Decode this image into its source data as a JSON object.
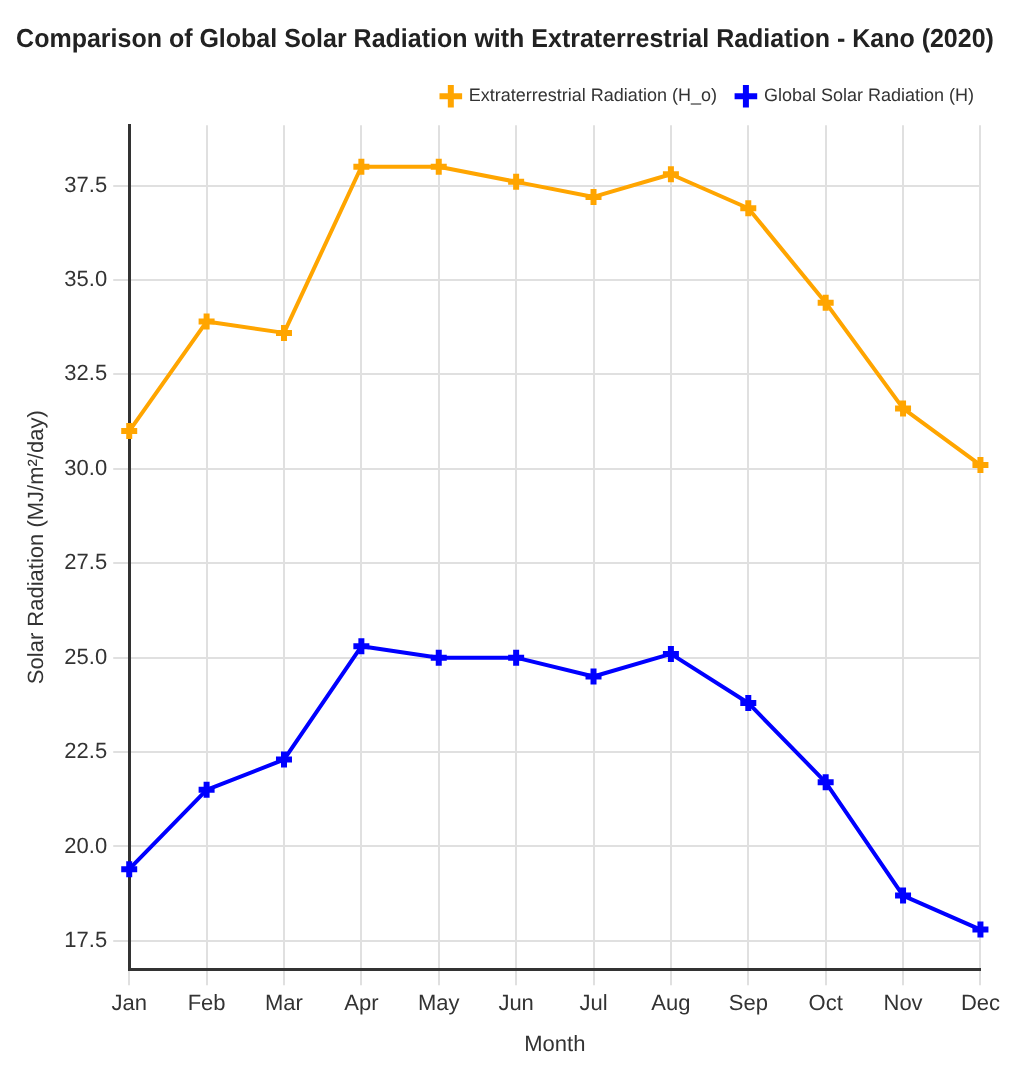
{
  "chart_data": {
    "type": "line",
    "title": "Comparison of Global Solar Radiation with Extraterrestrial Radiation - Kano (2020)",
    "xlabel": "Month",
    "ylabel": "Solar Radiation (MJ/m²/day)",
    "categories": [
      "Jan",
      "Feb",
      "Mar",
      "Apr",
      "May",
      "Jun",
      "Jul",
      "Aug",
      "Sep",
      "Oct",
      "Nov",
      "Dec"
    ],
    "series": [
      {
        "name": "Extraterrestrial Radiation (H_o)",
        "color": "#ffa500",
        "values": [
          31.0,
          33.9,
          33.6,
          38.0,
          38.0,
          37.6,
          37.2,
          37.8,
          36.9,
          34.4,
          31.6,
          30.1
        ]
      },
      {
        "name": "Global Solar Radiation (H)",
        "color": "#0000ff",
        "values": [
          19.4,
          21.5,
          22.3,
          25.3,
          25.0,
          25.0,
          24.5,
          25.1,
          23.8,
          21.7,
          18.7,
          17.8
        ]
      }
    ],
    "ylim": [
      16.75,
      39.1
    ],
    "yticks": [
      {
        "value": 17.5,
        "label": "17.5"
      },
      {
        "value": 20,
        "label": "20.0"
      },
      {
        "value": 22.5,
        "label": "22.5"
      },
      {
        "value": 25,
        "label": "25.0"
      },
      {
        "value": 27.5,
        "label": "27.5"
      },
      {
        "value": 30,
        "label": "30.0"
      },
      {
        "value": 32.5,
        "label": "32.5"
      },
      {
        "value": 35,
        "label": "35.0"
      },
      {
        "value": 37.5,
        "label": "37.5"
      }
    ],
    "grid": true,
    "legend": "top right",
    "marker": "cross",
    "line_style": "solid"
  }
}
